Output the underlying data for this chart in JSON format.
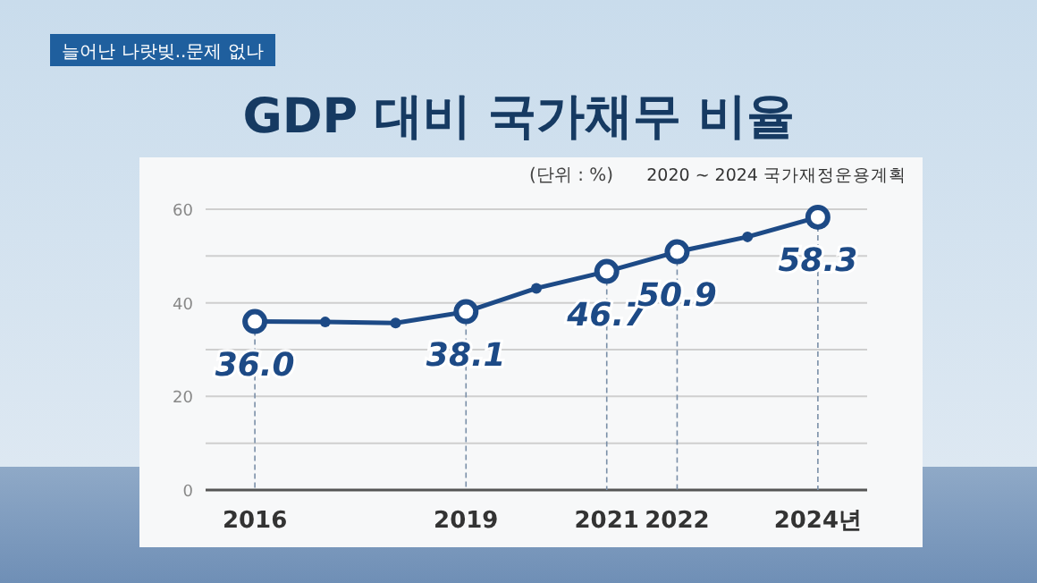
{
  "chart_data": {
    "type": "line",
    "title": "GDP 대비 국가채무 비율",
    "annotations": [
      "늘어난 나랏빚..문제 없나",
      "(단위 : %)",
      "2020 ~ 2024 국가재정운용계획"
    ],
    "x": [
      2016,
      2017,
      2018,
      2019,
      2020,
      2021,
      2022,
      2023,
      2024
    ],
    "series": [
      {
        "color": "#1d4a86",
        "values": [
          36.0,
          35.9,
          35.7,
          38.1,
          43.1,
          46.7,
          50.9,
          54.1,
          58.3
        ]
      }
    ],
    "value_labels": [
      "36.0",
      null,
      null,
      "38.1",
      null,
      "46.7",
      "50.9",
      null,
      "58.3"
    ],
    "xlim": [
      2015.3,
      2024.7
    ],
    "ylim": [
      0,
      60
    ],
    "xticks": [
      2016,
      2019,
      2021,
      2022,
      {
        "value": 2024,
        "label": "2024년"
      }
    ],
    "yticks": [
      0,
      {
        "value": 10,
        "label": null
      },
      20,
      {
        "value": 30,
        "label": null
      },
      40,
      {
        "value": 50,
        "label": null
      },
      60
    ],
    "grid": true,
    "marker": "circle"
  }
}
